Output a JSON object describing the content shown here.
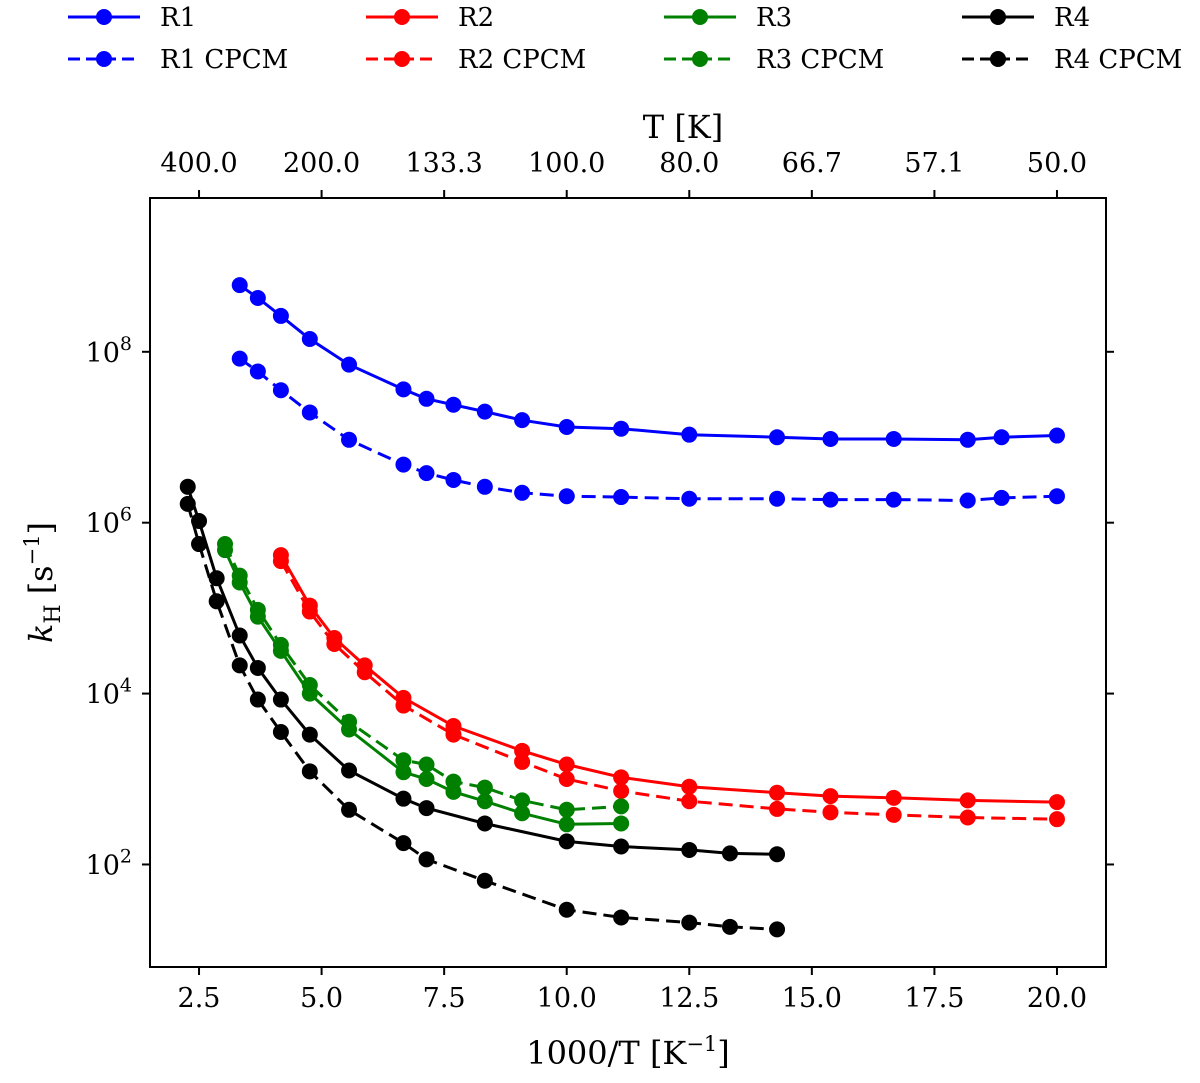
{
  "chart_data": {
    "type": "line",
    "xlabel": "1000/T [K",
    "xlabel_sup": "−1",
    "xlabel_close": "]",
    "ylabel_k": "k",
    "ylabel_sub": "H",
    "ylabel_unit": "[s",
    "ylabel_sup": "−1",
    "ylabel_close": "]",
    "top_xlabel": "T [K]",
    "xlim": [
      1.5,
      21.0
    ],
    "ylim_log10": [
      0.8,
      9.8
    ],
    "yscale": "log",
    "x_ticks": [
      2.5,
      5.0,
      7.5,
      10.0,
      12.5,
      15.0,
      17.5,
      20.0
    ],
    "x_tick_labels": [
      "2.5",
      "5.0",
      "7.5",
      "10.0",
      "12.5",
      "15.0",
      "17.5",
      "20.0"
    ],
    "y_ticks_log10": [
      2,
      4,
      6,
      8
    ],
    "y_tick_base": "10",
    "y_tick_exponents": [
      "2",
      "4",
      "6",
      "8"
    ],
    "top_ticks": [
      2.5,
      5.0,
      7.5,
      10.0,
      12.5,
      15.0,
      17.5,
      20.0
    ],
    "top_tick_labels": [
      "400.0",
      "200.0",
      "133.3",
      "100.0",
      "80.0",
      "66.7",
      "57.1",
      "50.0"
    ],
    "legend_position": "top, above plot (4 columns)",
    "series": [
      {
        "name": "R1",
        "color": "#0000ff",
        "dash": "solid",
        "x": [
          3.33,
          3.7,
          4.17,
          4.76,
          5.56,
          6.67,
          7.14,
          7.69,
          8.33,
          9.09,
          10.0,
          11.11,
          12.5,
          14.29,
          15.38,
          16.67,
          18.18,
          18.87,
          20.0
        ],
        "log10_y": [
          8.78,
          8.63,
          8.42,
          8.15,
          7.85,
          7.56,
          7.45,
          7.38,
          7.3,
          7.2,
          7.12,
          7.1,
          7.03,
          7.0,
          6.98,
          6.98,
          6.97,
          7.0,
          7.02
        ]
      },
      {
        "name": "R1 CPCM",
        "color": "#0000ff",
        "dash": "dashed",
        "x": [
          3.33,
          3.7,
          4.17,
          4.76,
          5.56,
          6.67,
          7.14,
          7.69,
          8.33,
          9.09,
          10.0,
          11.11,
          12.5,
          14.29,
          15.38,
          16.67,
          18.18,
          18.87,
          20.0
        ],
        "log10_y": [
          7.92,
          7.77,
          7.55,
          7.29,
          6.97,
          6.68,
          6.58,
          6.5,
          6.42,
          6.35,
          6.31,
          6.3,
          6.28,
          6.28,
          6.27,
          6.27,
          6.26,
          6.29,
          6.31
        ]
      },
      {
        "name": "R2",
        "color": "#ff0000",
        "dash": "solid",
        "x": [
          4.17,
          4.76,
          5.26,
          5.88,
          6.67,
          7.69,
          9.09,
          10.0,
          11.11,
          12.5,
          14.29,
          15.38,
          16.67,
          18.18,
          20.0
        ],
        "log10_y": [
          5.62,
          5.03,
          4.65,
          4.33,
          3.95,
          3.62,
          3.33,
          3.17,
          3.02,
          2.91,
          2.84,
          2.8,
          2.78,
          2.75,
          2.73
        ]
      },
      {
        "name": "R2 CPCM",
        "color": "#ff0000",
        "dash": "dashed",
        "x": [
          4.17,
          4.76,
          5.26,
          5.88,
          6.67,
          7.69,
          9.09,
          10.0,
          11.11,
          12.5,
          14.29,
          15.38,
          16.67,
          18.18,
          20.0
        ],
        "log10_y": [
          5.55,
          4.96,
          4.58,
          4.25,
          3.86,
          3.52,
          3.2,
          3.0,
          2.86,
          2.74,
          2.65,
          2.61,
          2.58,
          2.55,
          2.53
        ]
      },
      {
        "name": "R3",
        "color": "#008000",
        "dash": "solid",
        "x": [
          3.03,
          3.33,
          3.7,
          4.17,
          4.76,
          5.56,
          6.67,
          7.14,
          7.69,
          8.33,
          9.09,
          10.0,
          11.11
        ],
        "log10_y": [
          5.68,
          5.3,
          4.9,
          4.5,
          4.0,
          3.58,
          3.08,
          3.0,
          2.85,
          2.74,
          2.6,
          2.47,
          2.48
        ]
      },
      {
        "name": "R3 CPCM",
        "color": "#008000",
        "dash": "dashed",
        "x": [
          3.03,
          3.33,
          3.7,
          4.17,
          4.76,
          5.56,
          6.67,
          7.14,
          7.69,
          8.33,
          9.09,
          10.0,
          11.11
        ],
        "log10_y": [
          5.75,
          5.38,
          4.98,
          4.57,
          4.1,
          3.67,
          3.22,
          3.17,
          2.97,
          2.9,
          2.75,
          2.64,
          2.68
        ]
      },
      {
        "name": "R4",
        "color": "#000000",
        "dash": "solid",
        "x": [
          2.27,
          2.5,
          2.86,
          3.33,
          3.7,
          4.17,
          4.76,
          5.56,
          6.67,
          7.14,
          8.33,
          10.0,
          11.11,
          12.5,
          13.33,
          14.29
        ],
        "log10_y": [
          6.42,
          6.02,
          5.35,
          4.68,
          4.3,
          3.93,
          3.52,
          3.1,
          2.77,
          2.66,
          2.48,
          2.27,
          2.21,
          2.17,
          2.13,
          2.12
        ]
      },
      {
        "name": "R4 CPCM",
        "color": "#000000",
        "dash": "dashed",
        "x": [
          2.27,
          2.5,
          2.86,
          3.33,
          3.7,
          4.17,
          4.76,
          5.56,
          6.67,
          7.14,
          8.33,
          10.0,
          11.11,
          12.5,
          13.33,
          14.29
        ],
        "log10_y": [
          6.22,
          5.75,
          5.08,
          4.33,
          3.93,
          3.55,
          3.09,
          2.64,
          2.25,
          2.06,
          1.81,
          1.47,
          1.38,
          1.32,
          1.27,
          1.24
        ]
      }
    ]
  }
}
